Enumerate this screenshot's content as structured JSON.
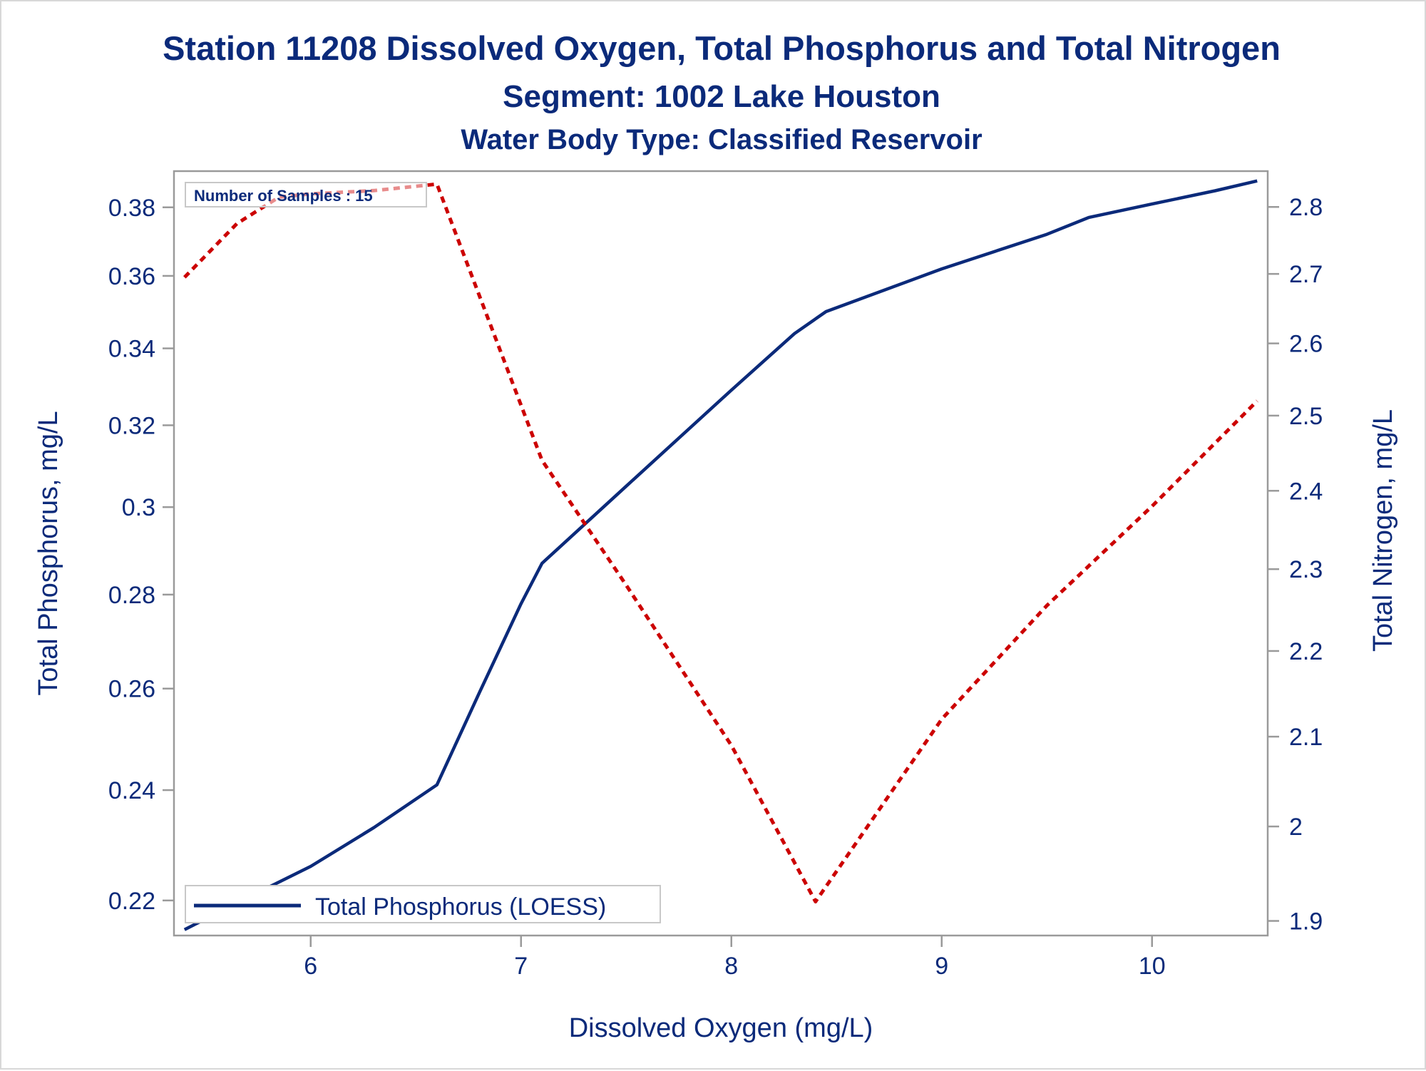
{
  "chart_data": {
    "type": "line",
    "title": "Station 11208  Dissolved Oxygen, Total Phosphorus and Total Nitrogen",
    "subtitle": "Segment: 1002  Lake Houston",
    "subtitle2": "Water Body Type: Classified Reservoir",
    "xlabel": "Dissolved Oxygen (mg/L)",
    "ylabel": "Total Phosphorus, mg/L",
    "y2label": "Total Nitrogen, mg/L",
    "xlim": [
      5.35,
      10.55
    ],
    "ylim": [
      0.214,
      0.391
    ],
    "y2lim": [
      1.885,
      2.855
    ],
    "y_scale": "log",
    "y2_scale": "log",
    "x_ticks": [
      6,
      7,
      8,
      9,
      10
    ],
    "x_tick_labels": [
      "6",
      "7",
      "8",
      "9",
      "10"
    ],
    "y_ticks": [
      0.22,
      0.24,
      0.26,
      0.28,
      0.3,
      0.32,
      0.34,
      0.36,
      0.38
    ],
    "y_tick_labels": [
      "0.22",
      "0.24",
      "0.26",
      "0.28",
      "0.3",
      "0.32",
      "0.34",
      "0.36",
      "0.38"
    ],
    "y2_ticks": [
      1.9,
      2.0,
      2.1,
      2.2,
      2.3,
      2.4,
      2.5,
      2.6,
      2.7,
      2.8
    ],
    "y2_tick_labels": [
      "1.9",
      "2",
      "2.1",
      "2.2",
      "2.3",
      "2.4",
      "2.5",
      "2.6",
      "2.7",
      "2.8"
    ],
    "grid": false,
    "annotation": "Number of Samples : 15",
    "legend_position": "bottom-left",
    "series": [
      {
        "name": "Total Phosphorus (LOESS)",
        "axis": "left",
        "style": "solid",
        "color": "#0b2a7a",
        "x": [
          5.4,
          5.7,
          6.0,
          6.3,
          6.6,
          6.8,
          7.0,
          7.1,
          7.5,
          8.0,
          8.3,
          8.45,
          9.0,
          9.5,
          9.7,
          10.0,
          10.3,
          10.5
        ],
        "y": [
          0.215,
          0.2205,
          0.226,
          0.233,
          0.241,
          0.259,
          0.278,
          0.287,
          0.305,
          0.329,
          0.344,
          0.35,
          0.362,
          0.372,
          0.377,
          0.381,
          0.385,
          0.388
        ]
      },
      {
        "name": "",
        "axis": "right",
        "style": "dotted",
        "color": "#cc0000",
        "x": [
          5.4,
          5.65,
          5.85,
          6.0,
          6.3,
          6.6,
          7.1,
          7.5,
          8.0,
          8.4,
          9.0,
          9.5,
          10.0,
          10.5
        ],
        "y2": [
          2.695,
          2.775,
          2.815,
          2.82,
          2.825,
          2.835,
          2.44,
          2.28,
          2.09,
          1.92,
          2.12,
          2.255,
          2.38,
          2.52
        ]
      }
    ]
  }
}
